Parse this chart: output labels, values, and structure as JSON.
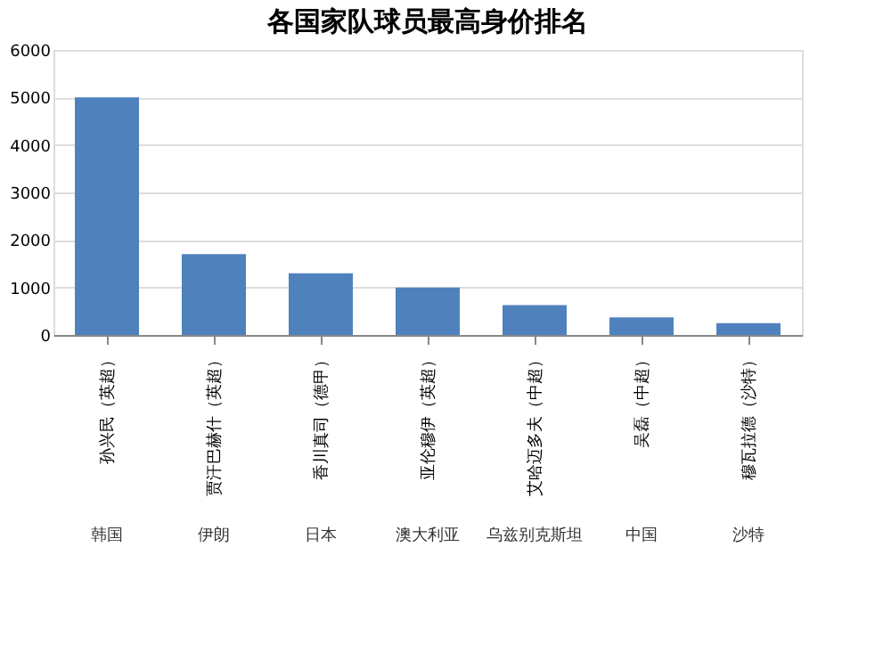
{
  "chart_data": {
    "type": "bar",
    "title": "各国家队球员最高身价排名",
    "categories": [
      "孙兴民（英超）",
      "贾汗巴赫什（英超）",
      "香川真司（德甲）",
      "亚伦穆伊（英超）",
      "艾哈迈多夫（中超）",
      "吴磊（中超）",
      "穆瓦拉德（沙特）"
    ],
    "values": [
      5000,
      1700,
      1300,
      1000,
      630,
      370,
      250
    ],
    "color": "#4f81bd",
    "ylim": [
      0,
      6000
    ],
    "yticks": [
      0,
      1000,
      2000,
      3000,
      4000,
      5000,
      6000
    ],
    "grid": "y",
    "annotations": [
      "韩国",
      "伊朗",
      "日本",
      "澳大利亚",
      "乌兹别克斯坦",
      "中国",
      "沙特"
    ]
  }
}
